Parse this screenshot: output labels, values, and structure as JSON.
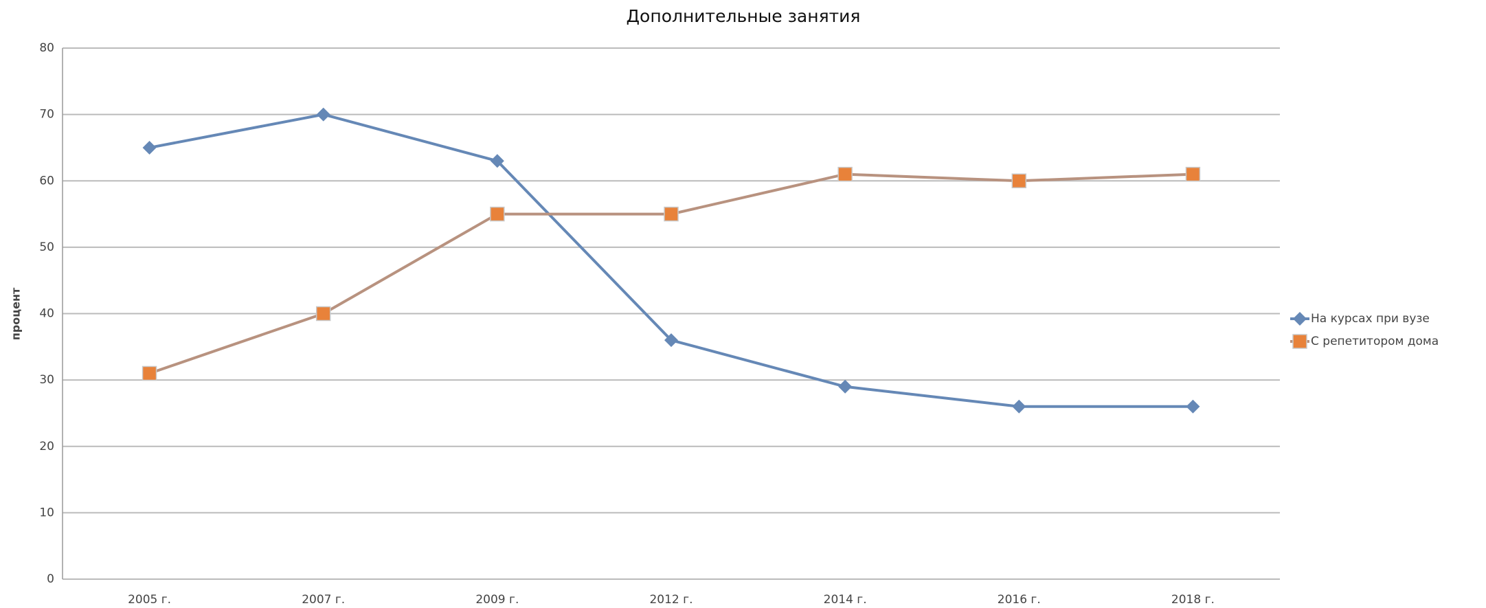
{
  "chart_data": {
    "type": "line",
    "title": "Дополнительные занятия",
    "y_label": "процент",
    "categories": [
      "2005 г.",
      "2007 г.",
      "2009 г.",
      "2012 г.",
      "2014 г.",
      "2016 г.",
      "2018 г."
    ],
    "series": [
      {
        "name": "На курсах при вузе",
        "color": "#6588b6",
        "marker": "diamond",
        "values": [
          65,
          70,
          63,
          36,
          29,
          26,
          26
        ]
      },
      {
        "name": "С репетитором дома",
        "color": "#e8823a",
        "line_color": "#b8927f",
        "marker": "square",
        "values": [
          31,
          40,
          55,
          55,
          61,
          60,
          61
        ]
      }
    ],
    "ylim": [
      0,
      80
    ],
    "yticks": [
      0,
      10,
      20,
      30,
      40,
      50,
      60,
      70,
      80
    ],
    "grid": true,
    "legend": "right"
  }
}
